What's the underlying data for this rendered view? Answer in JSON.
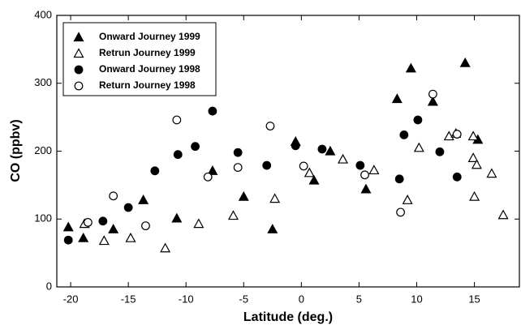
{
  "chart_data": {
    "type": "scatter",
    "x_label": "Latitude (deg.)",
    "y_label": "CO (ppbv)",
    "xlim": [
      -21.2,
      18.9
    ],
    "ylim": [
      0,
      400
    ],
    "xticks": [
      -20,
      -15,
      -10,
      -5,
      0,
      5,
      10,
      15
    ],
    "yticks": [
      0,
      100,
      200,
      300,
      400
    ],
    "legend": "upper-left",
    "series": [
      {
        "name": "Onward Journey 1999",
        "color": "#000000",
        "marker": "triangle",
        "filled": true,
        "x": [
          -20.2,
          -18.9,
          -16.3,
          -13.7,
          -10.8,
          -7.7,
          -5,
          -2.5,
          -0.5,
          1.1,
          2.5,
          5.6,
          8.3,
          9.5,
          11.4,
          14.2,
          15.3
        ],
        "values": [
          88,
          72,
          85,
          128,
          101,
          171,
          133,
          85,
          214,
          157,
          200,
          144,
          277,
          322,
          273,
          330,
          217
        ]
      },
      {
        "name": "Retrun Journey 1999",
        "color": "#000000",
        "marker": "triangle",
        "filled": false,
        "x": [
          -18.8,
          -17.1,
          -14.8,
          -11.8,
          -8.9,
          -5.9,
          -2.3,
          0.7,
          3.6,
          6.3,
          9.2,
          10.2,
          12.8,
          13.4,
          14.9,
          14.9,
          15.0,
          15.2,
          16.5,
          17.5
        ],
        "values": [
          93,
          68,
          72,
          57,
          93,
          105,
          130,
          168,
          188,
          172,
          128,
          205,
          222,
          226,
          222,
          190,
          133,
          180,
          167,
          106
        ]
      },
      {
        "name": "Onward Journey 1998",
        "color": "#000000",
        "marker": "circle",
        "filled": true,
        "x": [
          -20.2,
          -17.2,
          -15,
          -12.7,
          -10.7,
          -9.2,
          -7.7,
          -5.5,
          -3.0,
          -0.5,
          1.8,
          5.1,
          8.5,
          8.9,
          10.1,
          12.0,
          13.5
        ],
        "values": [
          69,
          97,
          117,
          171,
          195,
          207,
          259,
          198,
          179,
          208,
          203,
          179,
          159,
          224,
          246,
          199,
          162
        ]
      },
      {
        "name": "Return Journey 1998",
        "color": "#000000",
        "marker": "circle",
        "filled": false,
        "x": [
          -18.5,
          -16.3,
          -13.5,
          -10.8,
          -8.1,
          -5.5,
          -2.7,
          0.2,
          5.5,
          8.6,
          11.4,
          13.5
        ],
        "values": [
          95,
          134,
          90,
          246,
          162,
          176,
          237,
          178,
          165,
          110,
          284,
          225
        ]
      }
    ]
  }
}
